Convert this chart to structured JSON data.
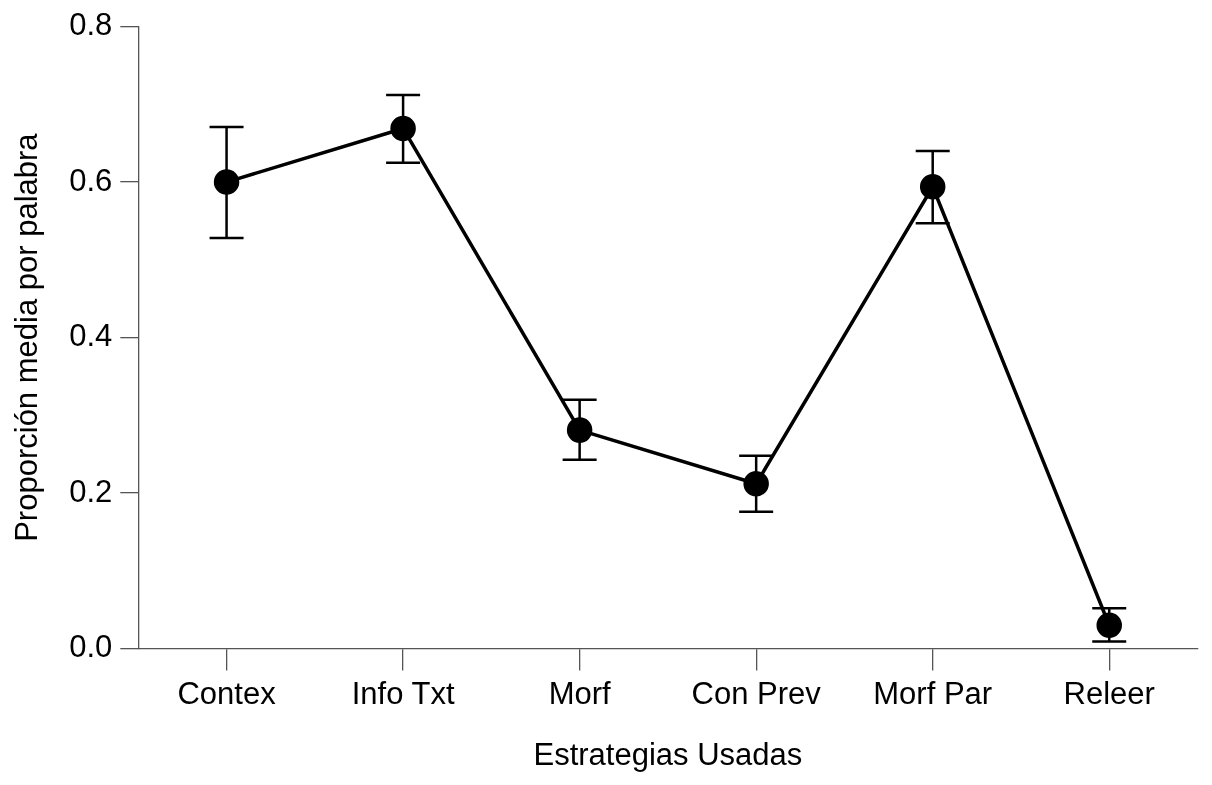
{
  "chart_data": {
    "type": "line",
    "xlabel": "Estrategias Usadas",
    "ylabel": "Proporción media por palabra",
    "categories": [
      "Contex",
      "Info Txt",
      "Morf",
      "Con Prev",
      "Morf Par",
      "Releer"
    ],
    "series": [
      {
        "color": "#000000",
        "values": [
          0.6,
          0.669,
          0.281,
          0.212,
          0.594,
          0.03
        ],
        "errors": [
          [
            0.528,
            0.671
          ],
          [
            0.625,
            0.712
          ],
          [
            0.243,
            0.32
          ],
          [
            0.176,
            0.248
          ],
          [
            0.547,
            0.64
          ],
          [
            0.009,
            0.052
          ]
        ]
      }
    ],
    "ylim": [
      0,
      0.8
    ],
    "yticks": [
      {
        "value": 0,
        "label": "0.0"
      },
      0.2,
      0.4,
      0.6,
      0.8
    ],
    "marker": "circle",
    "line_style": "solid"
  }
}
